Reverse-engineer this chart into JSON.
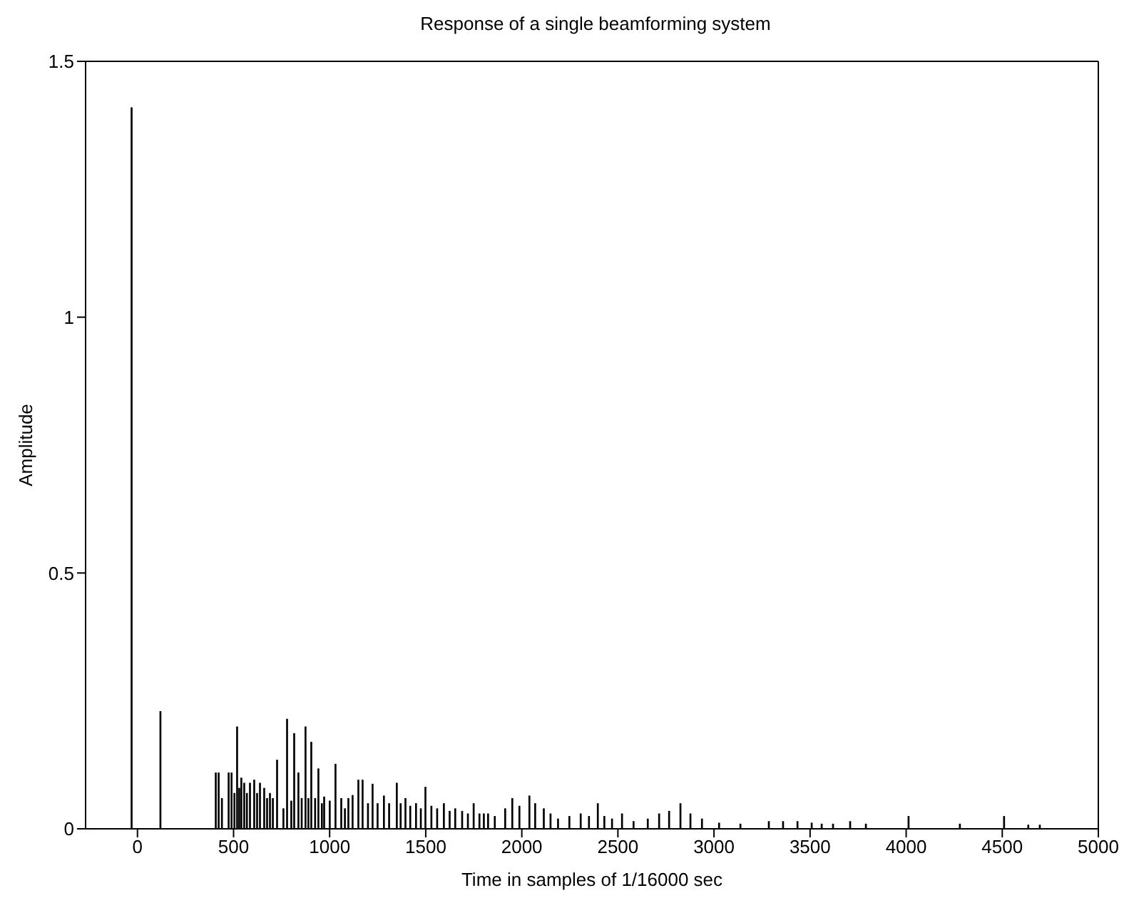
{
  "chart_data": {
    "type": "bar",
    "title": "Response of a single beamforming system",
    "xlabel": "Time in samples of 1/16000 sec",
    "ylabel": "Amplitude",
    "color": "#000000",
    "x": [
      -30,
      120,
      408,
      423,
      440,
      475,
      490,
      505,
      519,
      530,
      541,
      556,
      570,
      586,
      608,
      623,
      638,
      660,
      675,
      690,
      705,
      727,
      760,
      779,
      801,
      816,
      838,
      855,
      875,
      890,
      905,
      925,
      942,
      960,
      972,
      1001,
      1031,
      1061,
      1080,
      1098,
      1120,
      1150,
      1172,
      1200,
      1224,
      1250,
      1283,
      1310,
      1350,
      1370,
      1395,
      1420,
      1450,
      1475,
      1499,
      1530,
      1560,
      1595,
      1625,
      1654,
      1690,
      1720,
      1750,
      1780,
      1803,
      1825,
      1860,
      1914,
      1951,
      1988,
      2040,
      2070,
      2115,
      2150,
      2189,
      2248,
      2307,
      2350,
      2396,
      2430,
      2470,
      2522,
      2582,
      2656,
      2715,
      2767,
      2826,
      2878,
      2938,
      3027,
      3138,
      3286,
      3360,
      3435,
      3509,
      3561,
      3620,
      3709,
      3791,
      4013,
      4280,
      4510,
      4636,
      4696
    ],
    "values": [
      1.41,
      0.23,
      0.11,
      0.11,
      0.06,
      0.11,
      0.11,
      0.07,
      0.2,
      0.08,
      0.1,
      0.09,
      0.07,
      0.09,
      0.096,
      0.07,
      0.09,
      0.08,
      0.06,
      0.07,
      0.06,
      0.135,
      0.04,
      0.215,
      0.055,
      0.187,
      0.11,
      0.06,
      0.2,
      0.06,
      0.17,
      0.06,
      0.118,
      0.05,
      0.063,
      0.055,
      0.127,
      0.06,
      0.04,
      0.06,
      0.066,
      0.096,
      0.096,
      0.05,
      0.088,
      0.05,
      0.065,
      0.05,
      0.09,
      0.05,
      0.06,
      0.045,
      0.05,
      0.04,
      0.082,
      0.045,
      0.04,
      0.05,
      0.035,
      0.04,
      0.035,
      0.03,
      0.05,
      0.03,
      0.03,
      0.03,
      0.025,
      0.04,
      0.06,
      0.045,
      0.065,
      0.05,
      0.04,
      0.03,
      0.02,
      0.025,
      0.03,
      0.025,
      0.05,
      0.025,
      0.02,
      0.03,
      0.015,
      0.02,
      0.03,
      0.035,
      0.05,
      0.03,
      0.02,
      0.012,
      0.01,
      0.015,
      0.015,
      0.015,
      0.012,
      0.01,
      0.01,
      0.015,
      0.01,
      0.025,
      0.01,
      0.025,
      0.008,
      0.008
    ],
    "xlim": [
      -270,
      5000
    ],
    "xticks": [
      0,
      500,
      1000,
      1500,
      2000,
      2500,
      3000,
      3500,
      4000,
      4500,
      5000
    ],
    "ylim": [
      0,
      1.5
    ],
    "yticks": [
      0,
      0.5,
      1,
      1.5
    ],
    "grid": false,
    "legend": false
  }
}
